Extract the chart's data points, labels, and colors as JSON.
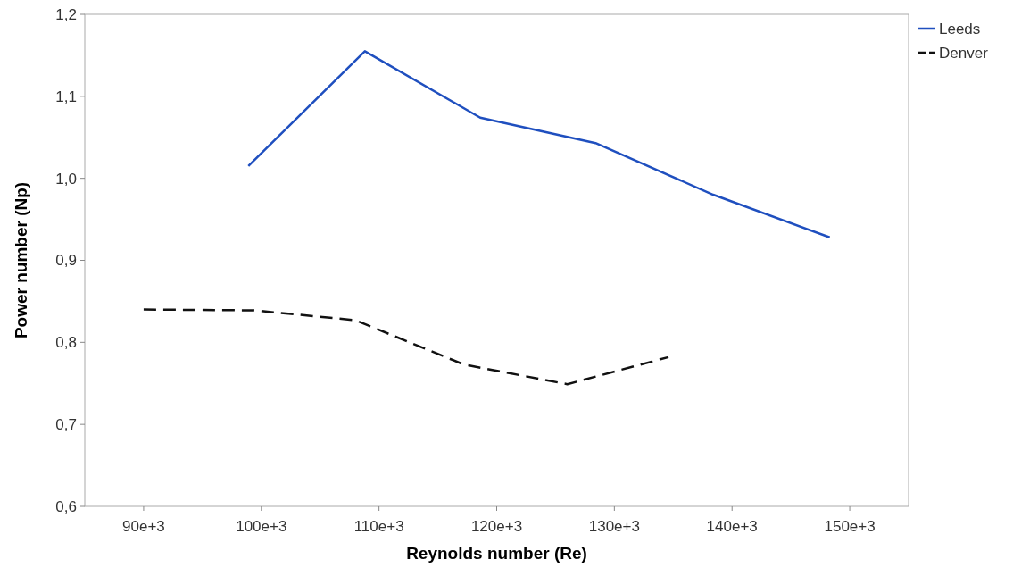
{
  "chart_data": {
    "type": "line",
    "xlabel": "Reynolds number (Re)",
    "ylabel": "Power number (Np)",
    "xlim": [
      85000,
      155000
    ],
    "xticks": [
      {
        "value": 90000,
        "label": "90e+3"
      },
      {
        "value": 100000,
        "label": "100e+3"
      },
      {
        "value": 110000,
        "label": "110e+3"
      },
      {
        "value": 120000,
        "label": "120e+3"
      },
      {
        "value": 130000,
        "label": "130e+3"
      },
      {
        "value": 140000,
        "label": "140e+3"
      },
      {
        "value": 150000,
        "label": "150e+3"
      }
    ],
    "ylim": [
      0.6,
      1.2
    ],
    "yticks": [
      {
        "value": 0.6,
        "label": "0,6"
      },
      {
        "value": 0.7,
        "label": "0,7"
      },
      {
        "value": 0.8,
        "label": "0,8"
      },
      {
        "value": 0.9,
        "label": "0,9"
      },
      {
        "value": 1.0,
        "label": "1,0"
      },
      {
        "value": 1.1,
        "label": "1,1"
      },
      {
        "value": 1.2,
        "label": "1,2"
      }
    ],
    "grid": false,
    "legend": "top right",
    "marker": "none",
    "series": [
      {
        "name": "Leeds",
        "color": "#1f4fbf",
        "line_style": "solid",
        "x": [
          98900,
          108800,
          118600,
          128400,
          138400,
          148300
        ],
        "values": [
          1.015,
          1.155,
          1.074,
          1.043,
          0.98,
          0.928
        ]
      },
      {
        "name": "Denver",
        "color": "#111111",
        "line_style": "dashed",
        "x": [
          90000,
          99400,
          108000,
          117200,
          126000,
          134600
        ],
        "values": [
          0.84,
          0.839,
          0.827,
          0.773,
          0.749,
          0.782
        ]
      }
    ]
  }
}
